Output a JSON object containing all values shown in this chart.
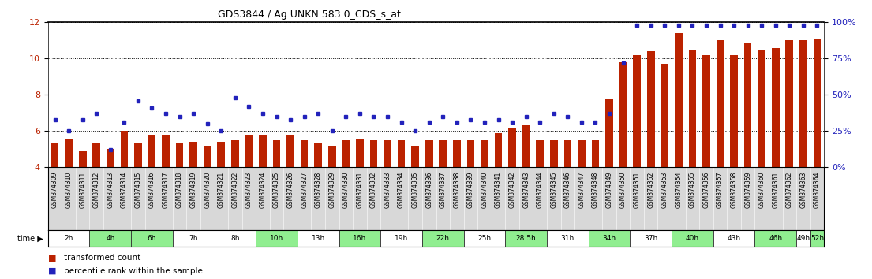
{
  "title": "GDS3844 / Ag.UNKN.583.0_CDS_s_at",
  "samples": [
    "GSM374309",
    "GSM374310",
    "GSM374311",
    "GSM374312",
    "GSM374313",
    "GSM374314",
    "GSM374315",
    "GSM374316",
    "GSM374317",
    "GSM374318",
    "GSM374319",
    "GSM374320",
    "GSM374321",
    "GSM374322",
    "GSM374323",
    "GSM374324",
    "GSM374325",
    "GSM374326",
    "GSM374327",
    "GSM374328",
    "GSM374329",
    "GSM374330",
    "GSM374331",
    "GSM374332",
    "GSM374333",
    "GSM374334",
    "GSM374335",
    "GSM374336",
    "GSM374337",
    "GSM374338",
    "GSM374339",
    "GSM374340",
    "GSM374341",
    "GSM374342",
    "GSM374343",
    "GSM374344",
    "GSM374345",
    "GSM374346",
    "GSM374347",
    "GSM374348",
    "GSM374349",
    "GSM374350",
    "GSM374351",
    "GSM374352",
    "GSM374353",
    "GSM374354",
    "GSM374355",
    "GSM374356",
    "GSM374357",
    "GSM374358",
    "GSM374359",
    "GSM374360",
    "GSM374361",
    "GSM374362",
    "GSM374363",
    "GSM374364"
  ],
  "bar_values": [
    5.3,
    5.6,
    4.9,
    5.3,
    5.0,
    6.0,
    5.3,
    5.8,
    5.8,
    5.3,
    5.4,
    5.2,
    5.4,
    5.5,
    5.8,
    5.8,
    5.5,
    5.8,
    5.5,
    5.3,
    5.2,
    5.5,
    5.6,
    5.5,
    5.5,
    5.5,
    5.2,
    5.5,
    5.5,
    5.5,
    5.5,
    5.5,
    5.9,
    6.2,
    6.3,
    5.5,
    5.5,
    5.5,
    5.5,
    5.5,
    7.8,
    9.8,
    10.2,
    10.4,
    9.7,
    11.4,
    10.5,
    10.2,
    11.0,
    10.2,
    10.9,
    10.5,
    10.6,
    11.0,
    11.0,
    11.1
  ],
  "dot_values_percentile": [
    33,
    25,
    33,
    37,
    12,
    31,
    46,
    41,
    37,
    35,
    37,
    30,
    25,
    48,
    42,
    37,
    35,
    33,
    35,
    37,
    25,
    35,
    37,
    35,
    35,
    31,
    25,
    31,
    35,
    31,
    33,
    31,
    33,
    31,
    35,
    31,
    37,
    35,
    31,
    31,
    37,
    72,
    98,
    98,
    98,
    98,
    98,
    98,
    98,
    98,
    98,
    98,
    98,
    98,
    98,
    98
  ],
  "time_groups": [
    {
      "label": "2h",
      "start": 0,
      "end": 3,
      "color": "#ffffff"
    },
    {
      "label": "4h",
      "start": 3,
      "end": 6,
      "color": "#90ee90"
    },
    {
      "label": "6h",
      "start": 6,
      "end": 9,
      "color": "#90ee90"
    },
    {
      "label": "7h",
      "start": 9,
      "end": 12,
      "color": "#ffffff"
    },
    {
      "label": "8h",
      "start": 12,
      "end": 15,
      "color": "#ffffff"
    },
    {
      "label": "10h",
      "start": 15,
      "end": 18,
      "color": "#90ee90"
    },
    {
      "label": "13h",
      "start": 18,
      "end": 21,
      "color": "#ffffff"
    },
    {
      "label": "16h",
      "start": 21,
      "end": 24,
      "color": "#90ee90"
    },
    {
      "label": "19h",
      "start": 24,
      "end": 27,
      "color": "#ffffff"
    },
    {
      "label": "22h",
      "start": 27,
      "end": 30,
      "color": "#90ee90"
    },
    {
      "label": "25h",
      "start": 30,
      "end": 33,
      "color": "#ffffff"
    },
    {
      "label": "28.5h",
      "start": 33,
      "end": 36,
      "color": "#90ee90"
    },
    {
      "label": "31h",
      "start": 36,
      "end": 39,
      "color": "#ffffff"
    },
    {
      "label": "34h",
      "start": 39,
      "end": 42,
      "color": "#90ee90"
    },
    {
      "label": "37h",
      "start": 42,
      "end": 45,
      "color": "#ffffff"
    },
    {
      "label": "40h",
      "start": 45,
      "end": 48,
      "color": "#90ee90"
    },
    {
      "label": "43h",
      "start": 48,
      "end": 51,
      "color": "#ffffff"
    },
    {
      "label": "46h",
      "start": 51,
      "end": 54,
      "color": "#90ee90"
    },
    {
      "label": "49h",
      "start": 54,
      "end": 55,
      "color": "#ffffff"
    },
    {
      "label": "52h",
      "start": 55,
      "end": 56,
      "color": "#90ee90"
    }
  ],
  "ylim_left": [
    4,
    12
  ],
  "ylim_right": [
    0,
    100
  ],
  "yticks_left": [
    4,
    6,
    8,
    10,
    12
  ],
  "yticks_right": [
    0,
    25,
    50,
    75,
    100
  ],
  "bar_color": "#bb2200",
  "dot_color": "#2222bb",
  "bar_bottom": 4,
  "sample_area_color": "#d8d8d8",
  "time_bar_border_color": "#333333"
}
